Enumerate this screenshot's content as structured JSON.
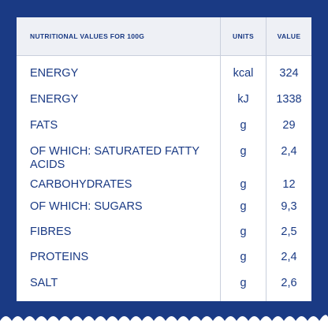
{
  "table": {
    "header": {
      "label": "NUTRITIONAL VALUES FOR 100G",
      "units": "UNITS",
      "value": "VALUE"
    },
    "rows": [
      {
        "label": "ENERGY",
        "units": "kcal",
        "value": "324"
      },
      {
        "label": "ENERGY",
        "units": "kJ",
        "value": "1338"
      },
      {
        "label": "FATS",
        "units": "g",
        "value": "29"
      },
      {
        "label": "OF WHICH: SATURATED FATTY ACIDS",
        "units": "g",
        "value": "2,4"
      },
      {
        "label": "CARBOHYDRATES",
        "units": "g",
        "value": "12"
      },
      {
        "label": "OF WHICH: SUGARS",
        "units": "g",
        "value": "9,3"
      },
      {
        "label": "FIBRES",
        "units": "g",
        "value": "2,5"
      },
      {
        "label": "PROTEINS",
        "units": "g",
        "value": "2,4"
      },
      {
        "label": "SALT",
        "units": "g",
        "value": "2,6"
      }
    ]
  },
  "colors": {
    "background": "#1a3a84",
    "text": "#1a3a84",
    "header_fill": "#eef0f5",
    "grid_line": "#c9cfdc",
    "wave": "#ffffff"
  }
}
